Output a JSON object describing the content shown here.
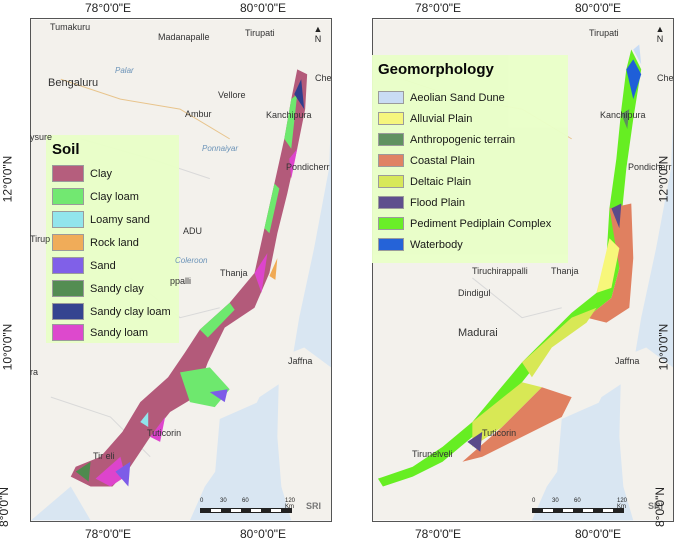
{
  "coords": {
    "top_left_lon_1": "78°0'0\"E",
    "top_left_lon_2": "80°0'0\"E",
    "bottom_left_lon_1": "78°0'0\"E",
    "bottom_left_lon_2": "80°0'0\"E",
    "top_right_lon_1": "78°0'0\"E",
    "top_right_lon_2": "80°0'0\"E",
    "bottom_right_lon_1": "78°0'0\"E",
    "bottom_right_lon_2": "80°0'0\"E",
    "lat_12": "12°0'0\"N",
    "lat_10": "10°0'0\"N",
    "lat_8": "8°0'0\"N"
  },
  "soil_legend": {
    "title": "Soil",
    "items": [
      {
        "label": "Clay",
        "color": "#b35a7a"
      },
      {
        "label": "Clay loam",
        "color": "#6ee86e"
      },
      {
        "label": "Loamy sand",
        "color": "#8fe5ec"
      },
      {
        "label": "Rock land",
        "color": "#f0aa55"
      },
      {
        "label": "Sand",
        "color": "#7d5ce8"
      },
      {
        "label": "Sandy clay",
        "color": "#4e8a4e"
      },
      {
        "label": "Sandy clay loam",
        "color": "#2f3f8e"
      },
      {
        "label": "Sandy loam",
        "color": "#dd44cc"
      }
    ]
  },
  "geo_legend": {
    "title": "Geomorphology",
    "items": [
      {
        "label": "Aeolian Sand Dune",
        "color": "#c8dcf5"
      },
      {
        "label": "Alluvial Plain",
        "color": "#f7f77a"
      },
      {
        "label": "Anthropogenic terrain",
        "color": "#5c8f5c"
      },
      {
        "label": "Coastal Plain",
        "color": "#e08060"
      },
      {
        "label": "Deltaic Plain",
        "color": "#d8e855"
      },
      {
        "label": "Flood Plain",
        "color": "#5a4a8a"
      },
      {
        "label": "Pediment Pediplain Complex",
        "color": "#66ee22"
      },
      {
        "label": "Waterbody",
        "color": "#1f5fd8"
      }
    ]
  },
  "places_left": {
    "tumakuru": "Tumakuru",
    "madanapalle": "Madanapalle",
    "tirupati": "Tirupati",
    "bengaluru": "Bengaluru",
    "palar": "Palar",
    "vellore": "Vellore",
    "che": "Che",
    "ambur": "Ambur",
    "kanchipura": "Kanchipura",
    "mysure": "ysure",
    "pondicherry": "Pondicherr",
    "ponnaiyar": "Ponnaiyar",
    "adu": "ADU",
    "tirup": "Tirup",
    "coleroon": "Coleroon",
    "thanja": "Thanja",
    "ppalli": "ppalli",
    "jaffna": "Jaffna",
    "tuticorin": "Tuticorin",
    "tirunelveli": "Tir      eli",
    "ra": "ra",
    "sri": "SRI"
  },
  "places_right": {
    "tirupati": "Tirupati",
    "che": "Che",
    "kanchipura": "Kanchipura",
    "pondicherry": "Pondicherr",
    "tiruchirappalli": "Tiruchirappalli",
    "thanja": "Thanja",
    "dindigul": "Dindigul",
    "madurai": "Madurai",
    "jaffna": "Jaffna",
    "tuticorin": "Tuticorin",
    "tirunelveli": "Tirunelveli",
    "sri": "SRI"
  },
  "north_arrow": "N",
  "scale": {
    "ticks": [
      "0",
      "30",
      "60",
      "120 Km"
    ]
  }
}
